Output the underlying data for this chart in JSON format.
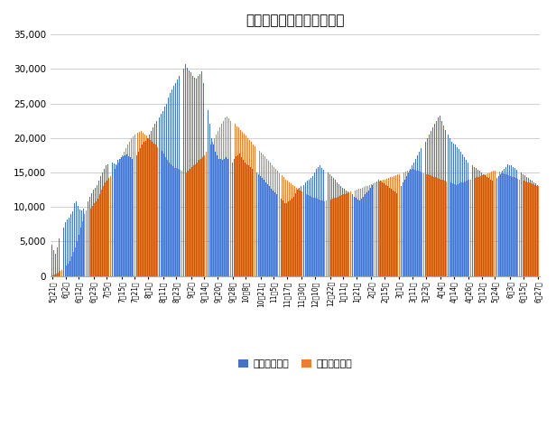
{
  "title": "雇用調整助成金の支給実績",
  "legend_labels": [
    "支給申請件数",
    "支給決定件数"
  ],
  "bar_colors": [
    "#4472C4",
    "#ED7D31"
  ],
  "ylim": [
    0,
    35000
  ],
  "yticks": [
    0,
    5000,
    10000,
    15000,
    20000,
    25000,
    30000,
    35000
  ],
  "background_color": "#FFFFFF",
  "tick_labels": [
    "5月21日",
    "6月2日",
    "6月12日",
    "6月23日",
    "7月5日",
    "7月15日",
    "7月21日",
    "8月1日",
    "8月11日",
    "8月23日",
    "9月2日",
    "9月14日",
    "9月20日",
    "9月28日",
    "10月8日",
    "10月21日",
    "11月5日",
    "11月17日",
    "11月30日",
    "12月10日",
    "12月22日",
    "1月11日",
    "1月21日",
    "2月2日",
    "2月15日",
    "3月1日",
    "3月11日",
    "3月23日",
    "4月4日",
    "4月14日",
    "4月26日",
    "5月12日",
    "5月24日",
    "6月3日",
    "6月15日",
    "6月27日"
  ],
  "series1": [
    4500,
    3800,
    3200,
    4200,
    5500,
    6200,
    7000,
    7800,
    8200,
    8500,
    9000,
    9400,
    10500,
    10800,
    10100,
    9600,
    9500,
    9800,
    10200,
    10800,
    11500,
    12000,
    12500,
    12800,
    13200,
    13800,
    14500,
    15000,
    15500,
    16000,
    16200,
    16400,
    16500,
    16300,
    16200,
    16800,
    17000,
    17200,
    17400,
    17500,
    17600,
    17400,
    17200,
    17000,
    17300,
    17500,
    18000,
    18500,
    19000,
    19400,
    19600,
    20000,
    20500,
    21000,
    21500,
    22000,
    22500,
    23000,
    23500,
    23900,
    24500,
    25000,
    25800,
    26500,
    27000,
    27500,
    28000,
    28500,
    29000,
    29500,
    30000,
    30700,
    30200,
    29800,
    29500,
    29000,
    28800,
    28600,
    29000,
    29300,
    29600,
    28000,
    26000,
    24000,
    22000,
    20000,
    19000,
    18000,
    17500,
    17000,
    16900,
    16800,
    17000,
    17200,
    17000,
    16800,
    16500,
    16900,
    17300,
    17500,
    17700,
    17200,
    16800,
    16500,
    16200,
    16000,
    15800,
    15500,
    15200,
    15000,
    14800,
    14500,
    14200,
    13900,
    13600,
    13300,
    13000,
    12700,
    12400,
    12100,
    11800,
    11500,
    11200,
    10900,
    10600,
    10500,
    10800,
    11000,
    11200,
    11500,
    12000,
    12500,
    12800,
    13000,
    13200,
    13500,
    13800,
    14000,
    14200,
    14500,
    15000,
    15500,
    15800,
    16000,
    15700,
    15400,
    15200,
    15000,
    14800,
    14500,
    14200,
    13900,
    13600,
    13300,
    13000,
    12800,
    12600,
    12400,
    12200,
    12000,
    11800,
    11500,
    11300,
    11100,
    10900,
    11200,
    11500,
    11800,
    12100,
    12400,
    12800,
    13200,
    13500,
    13700,
    14000,
    13800,
    13600,
    13400,
    13200,
    13000,
    12800,
    12600,
    12400,
    12200,
    12000,
    12500,
    13000,
    13500,
    14000,
    14500,
    15000,
    15500,
    16000,
    16500,
    17000,
    17500,
    18000,
    18500,
    19000,
    19500,
    20000,
    20500,
    21000,
    21500,
    22000,
    22500,
    23000,
    23200,
    22500,
    21800,
    21200,
    20500,
    20000,
    19500,
    19200,
    19000,
    18700,
    18400,
    18000,
    17600,
    17200,
    16800,
    16400,
    16200,
    16000,
    15800,
    15600,
    15400,
    15200,
    15000,
    14800,
    14600,
    14400,
    14200,
    14000,
    13800,
    14000,
    14200,
    14500,
    14800,
    15200,
    15500,
    15800,
    16200,
    16100,
    16000,
    15800,
    15600,
    15400,
    15200,
    15000,
    14800,
    14600,
    14400,
    14200,
    14000,
    13800,
    13600,
    13400,
    13200
  ],
  "series2": [
    100,
    200,
    300,
    500,
    700,
    900,
    1200,
    1500,
    1800,
    2200,
    2800,
    3500,
    4200,
    5000,
    6000,
    7000,
    8000,
    9000,
    9500,
    9400,
    9800,
    10200,
    10500,
    10800,
    11200,
    11800,
    12500,
    13000,
    13500,
    13800,
    14200,
    14500,
    15000,
    15500,
    16000,
    16500,
    17000,
    17500,
    18000,
    18500,
    19000,
    19500,
    20000,
    20200,
    20500,
    20700,
    20900,
    21000,
    20800,
    20500,
    20300,
    20000,
    19700,
    19500,
    19200,
    19000,
    18700,
    18500,
    18200,
    17700,
    17200,
    16800,
    16500,
    16200,
    15900,
    15700,
    15600,
    15500,
    15400,
    15300,
    15200,
    15000,
    15200,
    15500,
    15800,
    16000,
    16200,
    16500,
    16800,
    17000,
    17200,
    17500,
    18000,
    18500,
    19000,
    19500,
    20000,
    20500,
    21000,
    21500,
    22000,
    22500,
    23000,
    23100,
    22800,
    22500,
    22200,
    22000,
    21700,
    21500,
    21200,
    20900,
    20600,
    20300,
    20000,
    19700,
    19400,
    19100,
    18800,
    18500,
    18200,
    17900,
    17600,
    17300,
    17000,
    16700,
    16400,
    16100,
    15800,
    15500,
    15200,
    14900,
    14600,
    14300,
    14000,
    13800,
    13600,
    13400,
    13200,
    13000,
    12800,
    12600,
    12400,
    12200,
    12000,
    11800,
    11700,
    11600,
    11500,
    11400,
    11300,
    11200,
    11100,
    11000,
    10900,
    10800,
    10900,
    11000,
    11100,
    11200,
    11300,
    11400,
    11500,
    11600,
    11700,
    11800,
    11900,
    12000,
    12100,
    12200,
    12300,
    12400,
    12500,
    12600,
    12700,
    12800,
    12900,
    13000,
    13100,
    13200,
    13300,
    13400,
    13500,
    13600,
    13700,
    13800,
    13900,
    14000,
    14100,
    14200,
    14300,
    14400,
    14500,
    14600,
    14700,
    14800,
    14900,
    15000,
    15100,
    15200,
    15300,
    15400,
    15500,
    15400,
    15300,
    15200,
    15100,
    15000,
    14900,
    14800,
    14700,
    14600,
    14500,
    14400,
    14300,
    14200,
    14100,
    14000,
    13900,
    13800,
    13700,
    13600,
    13500,
    13400,
    13300,
    13200,
    13300,
    13400,
    13500,
    13600,
    13700,
    13800,
    13900,
    14000,
    14100,
    14200,
    14300,
    14400,
    14500,
    14600,
    14700,
    14800,
    14900,
    15000,
    15100,
    15200,
    15300,
    15200,
    15100,
    15000,
    14900,
    14800,
    14700,
    14600,
    14500,
    14400,
    14300,
    14200,
    14100,
    14000,
    13900,
    13800,
    13700,
    13600,
    13500,
    13400,
    13300,
    13200,
    13100,
    13000
  ]
}
